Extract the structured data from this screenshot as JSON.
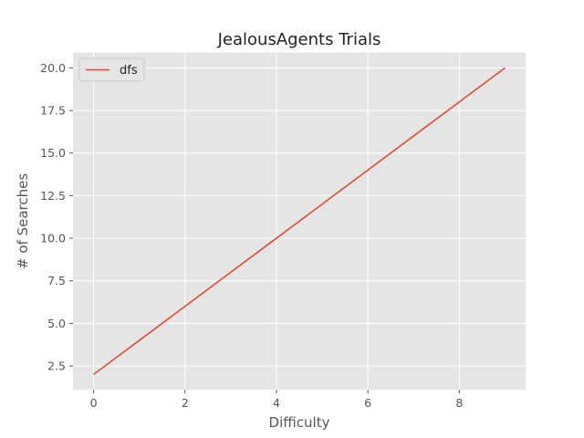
{
  "chart_data": {
    "type": "line",
    "title": "JealousAgents Trials",
    "xlabel": "Difficulty",
    "ylabel": "# of Searches",
    "xlim": [
      -0.45,
      9.45
    ],
    "ylim": [
      1.1,
      20.9
    ],
    "xticks": [
      0,
      2,
      4,
      6,
      8
    ],
    "xtick_labels": [
      "0",
      "2",
      "4",
      "6",
      "8"
    ],
    "yticks": [
      2.5,
      5.0,
      7.5,
      10.0,
      12.5,
      15.0,
      17.5,
      20.0
    ],
    "ytick_labels": [
      "2.5",
      "5.0",
      "7.5",
      "10.0",
      "12.5",
      "15.0",
      "17.5",
      "20.0"
    ],
    "grid": true,
    "legend_position": "top-left",
    "series": [
      {
        "name": "dfs",
        "color": "#E24A33",
        "x": [
          0,
          1,
          2,
          3,
          4,
          5,
          6,
          7,
          8,
          9
        ],
        "y": [
          2,
          4,
          6,
          8,
          10,
          12,
          14,
          16,
          18,
          20
        ]
      }
    ]
  },
  "style": {
    "plot_background": "#E5E5E5",
    "grid_color": "#FFFFFF"
  }
}
